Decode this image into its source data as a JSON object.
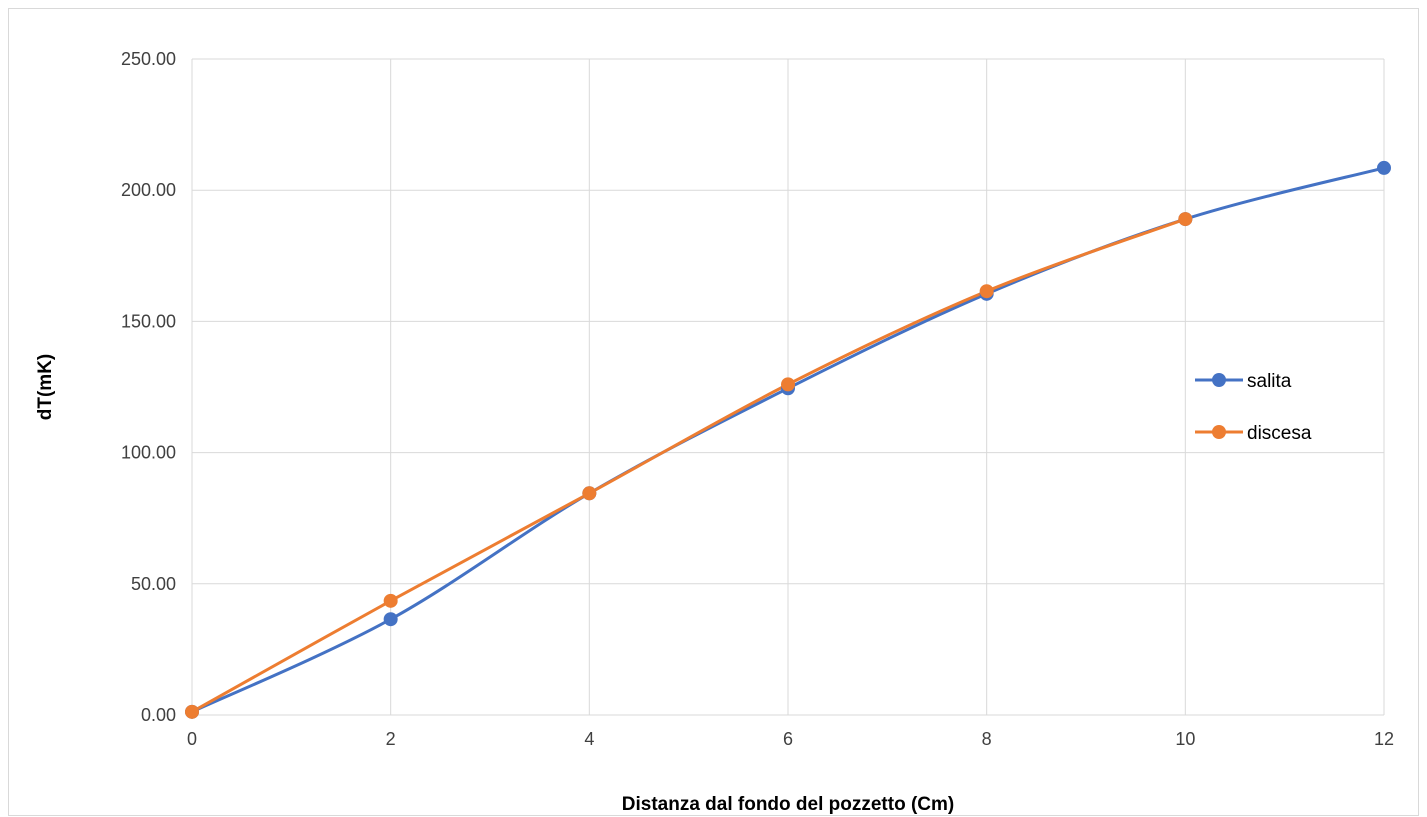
{
  "chart_data": {
    "type": "line",
    "title": "",
    "xlabel": "Distanza dal fondo del pozzetto (Cm)",
    "ylabel": "dT(mK)",
    "xlim": [
      0,
      12
    ],
    "ylim": [
      0,
      250
    ],
    "x_ticks": [
      {
        "value": 0,
        "label": "0"
      },
      {
        "value": 2,
        "label": "2"
      },
      {
        "value": 4,
        "label": "4"
      },
      {
        "value": 6,
        "label": "6"
      },
      {
        "value": 8,
        "label": "8"
      },
      {
        "value": 10,
        "label": "10"
      },
      {
        "value": 12,
        "label": "12"
      }
    ],
    "y_ticks": [
      {
        "value": 0,
        "label": "0.00"
      },
      {
        "value": 50,
        "label": "50.00"
      },
      {
        "value": 100,
        "label": "100.00"
      },
      {
        "value": 150,
        "label": "150.00"
      },
      {
        "value": 200,
        "label": "200.00"
      },
      {
        "value": 250,
        "label": "250.00"
      }
    ],
    "grid": true,
    "smooth": true,
    "legend_position": "right",
    "series": [
      {
        "name": "salita",
        "color": "#4472C4",
        "x": [
          0,
          2,
          4,
          6,
          8,
          10,
          12
        ],
        "y": [
          1.2,
          36.5,
          84.5,
          124.5,
          160.5,
          189.0,
          208.5
        ]
      },
      {
        "name": "discesa",
        "color": "#ED7D31",
        "x": [
          0,
          2,
          4,
          6,
          8,
          10
        ],
        "y": [
          1.2,
          43.5,
          84.5,
          126.0,
          161.5,
          189.0
        ]
      }
    ]
  }
}
